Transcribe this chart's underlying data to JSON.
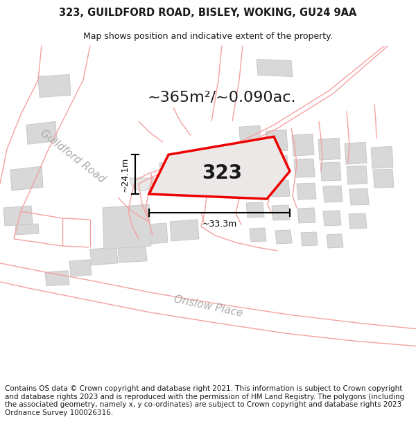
{
  "title": "323, GUILDFORD ROAD, BISLEY, WOKING, GU24 9AA",
  "subtitle": "Map shows position and indicative extent of the property.",
  "area_text": "~365m²/~0.090ac.",
  "dim_height": "~24.1m",
  "dim_width": "~33.3m",
  "label_323": "323",
  "street_label_1": "Guildford Road",
  "street_label_2": "Onslow Place",
  "footer": "Contains OS data © Crown copyright and database right 2021. This information is subject to Crown copyright and database rights 2023 and is reproduced with the permission of HM Land Registry. The polygons (including the associated geometry, namely x, y co-ordinates) are subject to Crown copyright and database rights 2023 Ordnance Survey 100026316.",
  "bg_color": "#ffffff",
  "map_bg": "#ffffff",
  "road_line_color": "#f4a0a0",
  "building_fill": "#d8d8d8",
  "building_edge": "#c8c8c8",
  "building_edge_thin": "#cccccc",
  "highlight_fill": "#ede8e8",
  "highlight_edge": "#ee0000",
  "dim_color": "#000000",
  "text_color": "#1a1a1a",
  "street_label_color": "#aaaaaa",
  "footer_fontsize": 7.5,
  "title_fontsize": 10.5,
  "subtitle_fontsize": 9.0,
  "area_fontsize": 16,
  "label_fontsize": 20,
  "street_fontsize": 11
}
